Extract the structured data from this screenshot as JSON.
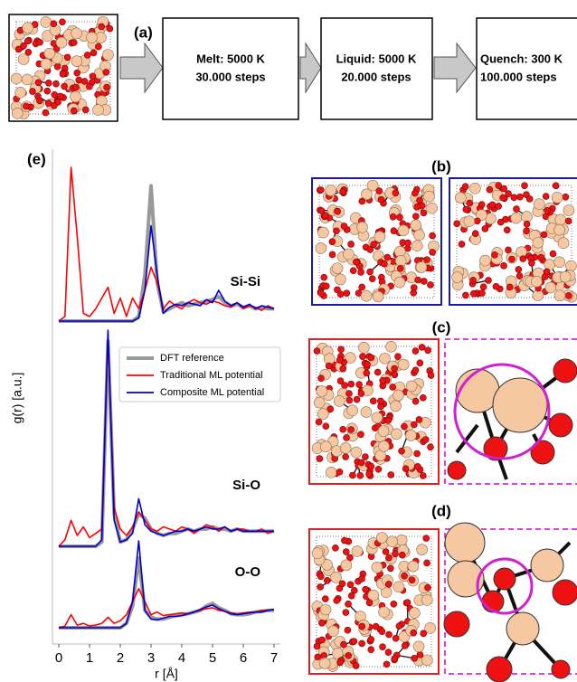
{
  "workflow": {
    "label": "(a)",
    "steps": [
      {
        "lines": [
          "Melt: 5000 K",
          "30.000 steps"
        ]
      },
      {
        "lines": [
          "Liquid: 5000 K",
          "20.000 steps"
        ]
      },
      {
        "lines": [
          "Quench: 300 K",
          "100.000 steps"
        ]
      }
    ]
  },
  "panels": {
    "b": "(b)",
    "c": "(c)",
    "d": "(d)",
    "e": "(e)"
  },
  "chart_data": [
    {
      "type": "line",
      "label": "Si-Si",
      "xlim": [
        0,
        7
      ],
      "ylim": [
        0,
        10
      ],
      "x": [
        0,
        0.2,
        0.4,
        0.6,
        0.8,
        1.0,
        1.2,
        1.4,
        1.6,
        1.8,
        2.0,
        2.2,
        2.4,
        2.6,
        2.8,
        3.0,
        3.2,
        3.4,
        3.6,
        3.8,
        4.0,
        4.2,
        4.4,
        4.6,
        4.8,
        5.0,
        5.2,
        5.4,
        5.6,
        5.8,
        6.0,
        6.2,
        6.4,
        6.6,
        6.8,
        7.0
      ],
      "series": [
        {
          "color": "#999999",
          "values": [
            0,
            0,
            0,
            0,
            0,
            0,
            0,
            0,
            0,
            0,
            0,
            0,
            0,
            0.3,
            3,
            8.8,
            2.5,
            0.6,
            0.8,
            1.0,
            1.2,
            1.0,
            1.1,
            1.2,
            1.3,
            1.4,
            1.6,
            1.2,
            1.0,
            1.1,
            0.9,
            1.0,
            0.8,
            0.9,
            0.8,
            0.8
          ]
        },
        {
          "color": "#ff0000",
          "values": [
            0,
            0.3,
            10,
            5.5,
            0.5,
            0.3,
            0.8,
            1.5,
            2.2,
            0.5,
            1.5,
            0.3,
            1.5,
            0.8,
            2,
            3.5,
            2.5,
            0.8,
            1.3,
            1.0,
            0.8,
            1.2,
            1.4,
            1.2,
            1.1,
            1.3,
            1.2,
            1.0,
            0.9,
            1.2,
            0.8,
            1.0,
            0.9,
            0.7,
            1.0,
            0.8
          ]
        },
        {
          "color": "#0000cc",
          "values": [
            0,
            0,
            0,
            0,
            0,
            0,
            0,
            0,
            0,
            0,
            0,
            0,
            0,
            0.2,
            2,
            6.2,
            3,
            0.5,
            0.9,
            1.1,
            1.0,
            1.2,
            1.1,
            1.0,
            1.4,
            1.2,
            2.0,
            1.3,
            1.0,
            1.2,
            0.9,
            1.1,
            0.8,
            1.0,
            0.9,
            0.8
          ]
        }
      ]
    },
    {
      "type": "line",
      "label": "Si-O",
      "ylabel": "g(r) [a.u.]",
      "xlim": [
        0,
        7
      ],
      "ylim": [
        0,
        10
      ],
      "x": [
        0,
        0.2,
        0.4,
        0.6,
        0.8,
        1.0,
        1.2,
        1.4,
        1.6,
        1.8,
        2.0,
        2.2,
        2.4,
        2.6,
        2.8,
        3.0,
        3.2,
        3.4,
        3.6,
        3.8,
        4.0,
        4.2,
        4.4,
        4.6,
        4.8,
        5.0,
        5.2,
        5.4,
        5.6,
        5.8,
        6.0,
        6.2,
        6.4,
        6.6,
        6.8,
        7.0
      ],
      "series": [
        {
          "name": "DFT reference",
          "color": "#999999",
          "values": [
            0,
            0,
            0,
            0,
            0,
            0,
            0,
            0.2,
            9.5,
            1.5,
            0.2,
            0.3,
            0.8,
            1.5,
            1.3,
            0.8,
            0.6,
            0.5,
            0.6,
            0.6,
            0.7,
            0.8,
            0.7,
            0.8,
            0.8,
            0.9,
            0.8,
            0.8,
            0.7,
            0.8,
            0.7,
            0.7,
            0.7,
            0.7,
            0.7,
            0.7
          ]
        },
        {
          "name": "Traditional ML potential",
          "color": "#ff0000",
          "values": [
            0,
            0.3,
            1.2,
            0.5,
            0.9,
            0.4,
            0.6,
            0.8,
            9.8,
            1.8,
            0.8,
            0.5,
            0.9,
            1.6,
            1.2,
            0.8,
            0.7,
            0.9,
            0.8,
            0.7,
            0.9,
            0.8,
            0.6,
            0.8,
            1.0,
            0.9,
            0.7,
            0.9,
            0.7,
            0.8,
            0.8,
            0.7,
            0.7,
            0.8,
            0.6,
            0.7
          ]
        },
        {
          "name": "Composite ML potential",
          "color": "#0000cc",
          "values": [
            0,
            0,
            0,
            0,
            0,
            0,
            0,
            0.3,
            10,
            1.2,
            0.2,
            0.3,
            0.6,
            2.2,
            1.0,
            0.7,
            0.6,
            0.5,
            0.6,
            0.7,
            0.7,
            0.8,
            0.7,
            0.8,
            0.9,
            0.8,
            0.8,
            0.9,
            0.7,
            0.8,
            0.7,
            0.7,
            0.7,
            0.7,
            0.7,
            0.7
          ]
        }
      ]
    },
    {
      "type": "line",
      "label": "O-O",
      "xlabel": "r [Å]",
      "xlim": [
        0,
        7
      ],
      "ylim": [
        0,
        10
      ],
      "xticks": [
        0,
        1,
        2,
        3,
        4,
        5,
        6,
        7
      ],
      "x": [
        0,
        0.2,
        0.4,
        0.6,
        0.8,
        1.0,
        1.2,
        1.4,
        1.6,
        1.8,
        2.0,
        2.2,
        2.4,
        2.6,
        2.8,
        3.0,
        3.2,
        3.4,
        3.6,
        3.8,
        4.0,
        4.2,
        4.4,
        4.6,
        4.8,
        5.0,
        5.2,
        5.4,
        5.6,
        5.8,
        6.0,
        6.2,
        6.4,
        6.6,
        6.8,
        7.0
      ],
      "series": [
        {
          "color": "#999999",
          "values": [
            0,
            0,
            0,
            0,
            0,
            0,
            0,
            0,
            0,
            0,
            0,
            0.5,
            2.5,
            8,
            2,
            1.2,
            1.0,
            1.0,
            1.2,
            1.4,
            1.5,
            1.6,
            1.8,
            2.0,
            2.5,
            2.8,
            2.3,
            2.0,
            1.6,
            1.5,
            1.5,
            1.6,
            1.8,
            1.9,
            2.0,
            2.0
          ]
        },
        {
          "color": "#ff0000",
          "values": [
            0,
            0.2,
            1.5,
            0.3,
            0.5,
            0.2,
            0.3,
            0.5,
            1.2,
            0.5,
            0.8,
            1.5,
            3,
            4.5,
            3,
            1.5,
            1.8,
            1.4,
            1.5,
            1.6,
            1.7,
            1.6,
            1.8,
            2.0,
            2.2,
            2.3,
            2.0,
            1.9,
            1.7,
            1.6,
            1.7,
            1.8,
            1.8,
            2.0,
            2.0,
            2.1
          ]
        },
        {
          "color": "#0000cc",
          "values": [
            0,
            0,
            0,
            0,
            0,
            0,
            0,
            0,
            0,
            0,
            0,
            0.5,
            3,
            10,
            2,
            1.0,
            0.9,
            1.1,
            1.3,
            1.3,
            1.4,
            1.6,
            1.8,
            2.1,
            2.4,
            2.6,
            2.2,
            1.9,
            1.6,
            1.5,
            1.6,
            1.7,
            1.8,
            1.8,
            2.0,
            2.1
          ]
        }
      ]
    }
  ]
}
